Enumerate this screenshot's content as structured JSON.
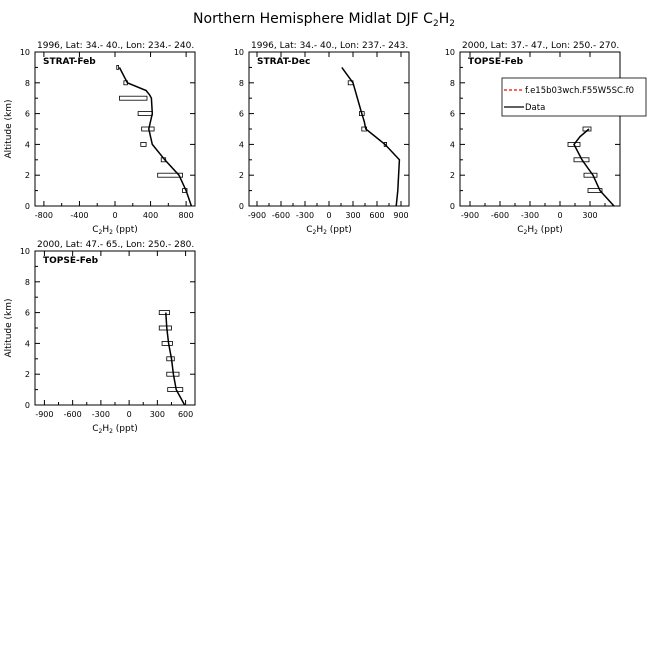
{
  "figure": {
    "title_main": "Northern Hemisphere Midlat DJF C",
    "title_sub_a": "2",
    "title_mid": "H",
    "title_sub_b": "2"
  },
  "chart_data": [
    {
      "type": "line",
      "header": "1996, Lat: 34.- 40., Lon: 234.- 240.",
      "campaign": "STRAT-Feb",
      "xlabel_main": "C",
      "xlabel_sub1": "2",
      "xlabel_mid": "H",
      "xlabel_sub2": "2",
      "xlabel_unit": " (ppt)",
      "ylabel": "Altitude (km)",
      "xlim": [
        -900,
        900
      ],
      "ylim": [
        0,
        10
      ],
      "xticks": [
        -800,
        -400,
        0,
        400,
        800
      ],
      "yticks": [
        0,
        2,
        4,
        6,
        8,
        10
      ],
      "series": [
        {
          "name": "Data",
          "style": "solid",
          "color": "#000000",
          "x": [
            860,
            800,
            720,
            560,
            420,
            380,
            420,
            410,
            390,
            350,
            140,
            50
          ],
          "y": [
            0,
            1,
            2,
            3,
            4,
            5,
            6,
            7,
            7.2,
            7.5,
            8,
            9
          ]
        }
      ],
      "errorbars": [
        {
          "y": 1,
          "lo": 760,
          "hi": 810
        },
        {
          "y": 2,
          "lo": 480,
          "hi": 760
        },
        {
          "y": 3,
          "lo": 520,
          "hi": 570
        },
        {
          "y": 4,
          "lo": 290,
          "hi": 350
        },
        {
          "y": 5,
          "lo": 300,
          "hi": 440
        },
        {
          "y": 6,
          "lo": 260,
          "hi": 420
        },
        {
          "y": 7,
          "lo": 50,
          "hi": 360
        },
        {
          "y": 8,
          "lo": 100,
          "hi": 140
        },
        {
          "y": 9,
          "lo": 20,
          "hi": 40
        }
      ],
      "legend": []
    },
    {
      "type": "line",
      "header": "1996, Lat: 34.- 40., Lon: 237.- 243.",
      "campaign": "STRAT-Dec",
      "xlabel_main": "C",
      "xlabel_sub1": "2",
      "xlabel_mid": "H",
      "xlabel_sub2": "2",
      "xlabel_unit": " (ppt)",
      "ylabel": "",
      "xlim": [
        -1000,
        1000
      ],
      "ylim": [
        0,
        10
      ],
      "xticks": [
        -900,
        -600,
        -300,
        0,
        300,
        600,
        900
      ],
      "yticks": [
        0,
        2,
        4,
        6,
        8,
        10
      ],
      "series": [
        {
          "name": "Data",
          "style": "solid",
          "color": "#000000",
          "x": [
            840,
            860,
            870,
            880,
            700,
            460,
            440,
            410,
            300,
            160
          ],
          "y": [
            0,
            1,
            2,
            3,
            4,
            5,
            5.5,
            6,
            8,
            9
          ]
        }
      ],
      "errorbars": [
        {
          "y": 4,
          "lo": 690,
          "hi": 720
        },
        {
          "y": 5,
          "lo": 410,
          "hi": 470
        },
        {
          "y": 6,
          "lo": 380,
          "hi": 440
        },
        {
          "y": 8,
          "lo": 240,
          "hi": 300
        }
      ],
      "legend": []
    },
    {
      "type": "line",
      "header": "2000, Lat: 37.- 47., Lon: 250.- 270.",
      "campaign": "TOPSE-Feb",
      "xlabel_main": "C",
      "xlabel_sub1": "2",
      "xlabel_mid": "H",
      "xlabel_sub2": "2",
      "xlabel_unit": " (ppt)",
      "ylabel": "",
      "xlim": [
        -1000,
        600
      ],
      "ylim": [
        0,
        10
      ],
      "xticks": [
        -900,
        -600,
        -300,
        0,
        300
      ],
      "yticks": [
        0,
        2,
        4,
        6,
        8,
        10
      ],
      "series": [
        {
          "name": "Data",
          "style": "solid",
          "color": "#000000",
          "x": [
            540,
            400,
            330,
            220,
            140,
            200,
            290
          ],
          "y": [
            0,
            1,
            2,
            3,
            4,
            4.5,
            5
          ]
        }
      ],
      "errorbars": [
        {
          "y": 1,
          "lo": 280,
          "hi": 420
        },
        {
          "y": 2,
          "lo": 240,
          "hi": 370
        },
        {
          "y": 3,
          "lo": 140,
          "hi": 290
        },
        {
          "y": 4,
          "lo": 80,
          "hi": 200
        },
        {
          "y": 5,
          "lo": 230,
          "hi": 310
        }
      ],
      "legend": [
        {
          "label": "f.e15b03wch.F55W5SC.f0",
          "style": "dashed",
          "color": "#ff0000"
        },
        {
          "label": "Data",
          "style": "solid",
          "color": "#000000"
        }
      ]
    },
    {
      "type": "line",
      "header": "2000, Lat: 47.- 65., Lon: 250.- 280.",
      "campaign": "TOPSE-Feb",
      "xlabel_main": "C",
      "xlabel_sub1": "2",
      "xlabel_mid": "H",
      "xlabel_sub2": "2",
      "xlabel_unit": " (ppt)",
      "ylabel": "Altitude (km)",
      "xlim": [
        -1000,
        700
      ],
      "ylim": [
        0,
        10
      ],
      "xticks": [
        -900,
        -600,
        -300,
        0,
        300,
        600
      ],
      "yticks": [
        0,
        2,
        4,
        6,
        8,
        10
      ],
      "series": [
        {
          "name": "Data",
          "style": "solid",
          "color": "#000000",
          "x": [
            590,
            500,
            470,
            450,
            420,
            400,
            390
          ],
          "y": [
            0,
            1,
            2,
            3,
            4,
            5,
            6
          ]
        }
      ],
      "errorbars": [
        {
          "y": 1,
          "lo": 410,
          "hi": 570
        },
        {
          "y": 2,
          "lo": 400,
          "hi": 530
        },
        {
          "y": 3,
          "lo": 400,
          "hi": 480
        },
        {
          "y": 4,
          "lo": 350,
          "hi": 460
        },
        {
          "y": 5,
          "lo": 320,
          "hi": 450
        },
        {
          "y": 6,
          "lo": 320,
          "hi": 430
        }
      ],
      "legend": []
    }
  ]
}
